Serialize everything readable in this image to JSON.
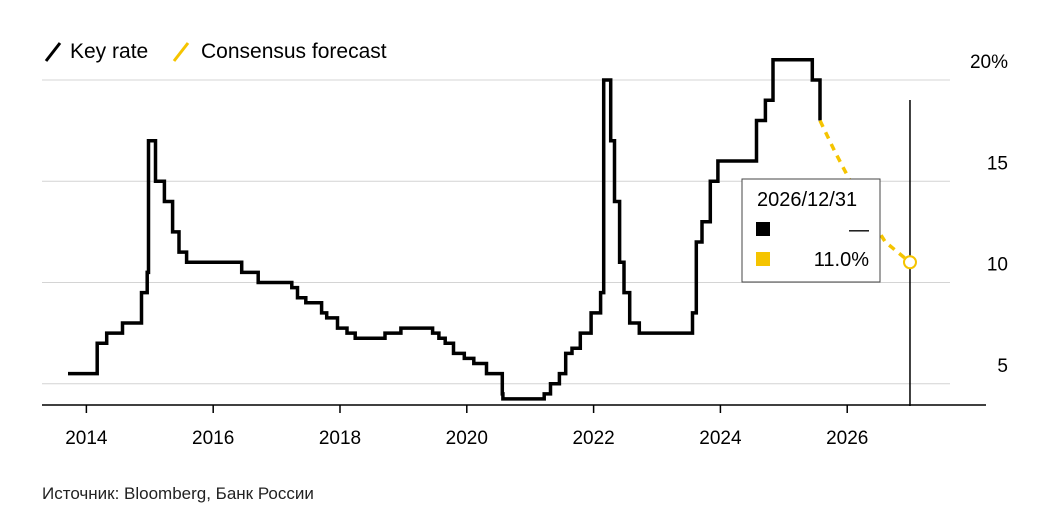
{
  "source_note": "Источник: Bloomberg, Банк России",
  "chart_data": {
    "type": "line",
    "title": "",
    "xlabel": "",
    "ylabel": "",
    "xlim": [
      2013.3,
      2027.7
    ],
    "ylim": [
      4,
      20
    ],
    "y_ticks": [
      {
        "value": 20,
        "label": "20%"
      },
      {
        "value": 15,
        "label": "15"
      },
      {
        "value": 10,
        "label": "10"
      },
      {
        "value": 5,
        "label": "5"
      }
    ],
    "x_ticks": [
      {
        "value": 2014,
        "label": "2014"
      },
      {
        "value": 2016,
        "label": "2016"
      },
      {
        "value": 2018,
        "label": "2018"
      },
      {
        "value": 2020,
        "label": "2020"
      },
      {
        "value": 2022,
        "label": "2022"
      },
      {
        "value": 2024,
        "label": "2024"
      },
      {
        "value": 2026,
        "label": "2026"
      }
    ],
    "grid": "horizontal",
    "legend_position": "top-left",
    "legend": [
      {
        "name": "Key rate",
        "color": "#000000",
        "style": "solid"
      },
      {
        "name": "Consensus forecast",
        "color": "#f5c400",
        "style": "dashed"
      }
    ],
    "series": [
      {
        "name": "Key rate",
        "color": "#000000",
        "step": true,
        "points": [
          [
            2013.71,
            5.5
          ],
          [
            2014.17,
            7.0
          ],
          [
            2014.32,
            7.5
          ],
          [
            2014.57,
            8.0
          ],
          [
            2014.87,
            9.5
          ],
          [
            2014.96,
            10.5
          ],
          [
            2014.98,
            17.0
          ],
          [
            2015.09,
            15.0
          ],
          [
            2015.23,
            14.0
          ],
          [
            2015.36,
            12.5
          ],
          [
            2015.46,
            11.5
          ],
          [
            2015.58,
            11.0
          ],
          [
            2016.45,
            10.5
          ],
          [
            2016.71,
            10.0
          ],
          [
            2017.24,
            9.75
          ],
          [
            2017.33,
            9.25
          ],
          [
            2017.46,
            9.0
          ],
          [
            2017.71,
            8.5
          ],
          [
            2017.79,
            8.25
          ],
          [
            2017.96,
            7.75
          ],
          [
            2018.11,
            7.5
          ],
          [
            2018.24,
            7.25
          ],
          [
            2018.71,
            7.5
          ],
          [
            2018.96,
            7.75
          ],
          [
            2019.46,
            7.5
          ],
          [
            2019.56,
            7.25
          ],
          [
            2019.66,
            7.0
          ],
          [
            2019.79,
            6.5
          ],
          [
            2019.96,
            6.25
          ],
          [
            2020.11,
            6.0
          ],
          [
            2020.31,
            5.5
          ],
          [
            2020.56,
            4.5
          ],
          [
            2020.57,
            4.25
          ],
          [
            2021.22,
            4.5
          ],
          [
            2021.32,
            5.0
          ],
          [
            2021.46,
            5.5
          ],
          [
            2021.56,
            6.5
          ],
          [
            2021.66,
            6.75
          ],
          [
            2021.79,
            7.5
          ],
          [
            2021.96,
            8.5
          ],
          [
            2022.11,
            9.5
          ],
          [
            2022.16,
            20.0
          ],
          [
            2022.27,
            17.0
          ],
          [
            2022.33,
            14.0
          ],
          [
            2022.41,
            11.0
          ],
          [
            2022.48,
            9.5
          ],
          [
            2022.57,
            8.0
          ],
          [
            2022.72,
            7.5
          ],
          [
            2023.56,
            8.5
          ],
          [
            2023.62,
            12.0
          ],
          [
            2023.71,
            13.0
          ],
          [
            2023.84,
            15.0
          ],
          [
            2023.96,
            16.0
          ],
          [
            2024.57,
            18.0
          ],
          [
            2024.71,
            19.0
          ],
          [
            2024.83,
            21.0
          ],
          [
            2025.45,
            20.0
          ],
          [
            2025.57,
            18.0
          ]
        ]
      },
      {
        "name": "Consensus forecast",
        "color": "#f5c400",
        "step": false,
        "points": [
          [
            2025.57,
            18.0
          ],
          [
            2025.8,
            16.5
          ],
          [
            2026.05,
            15.0
          ],
          [
            2026.3,
            13.5
          ],
          [
            2026.6,
            12.0
          ],
          [
            2026.99,
            11.0
          ]
        ]
      }
    ],
    "tooltip": {
      "date": "2026/12/31",
      "x": 2026.99,
      "rows": [
        {
          "color": "#000000",
          "value": "—"
        },
        {
          "color": "#f5c400",
          "value": "11.0%"
        }
      ]
    }
  }
}
